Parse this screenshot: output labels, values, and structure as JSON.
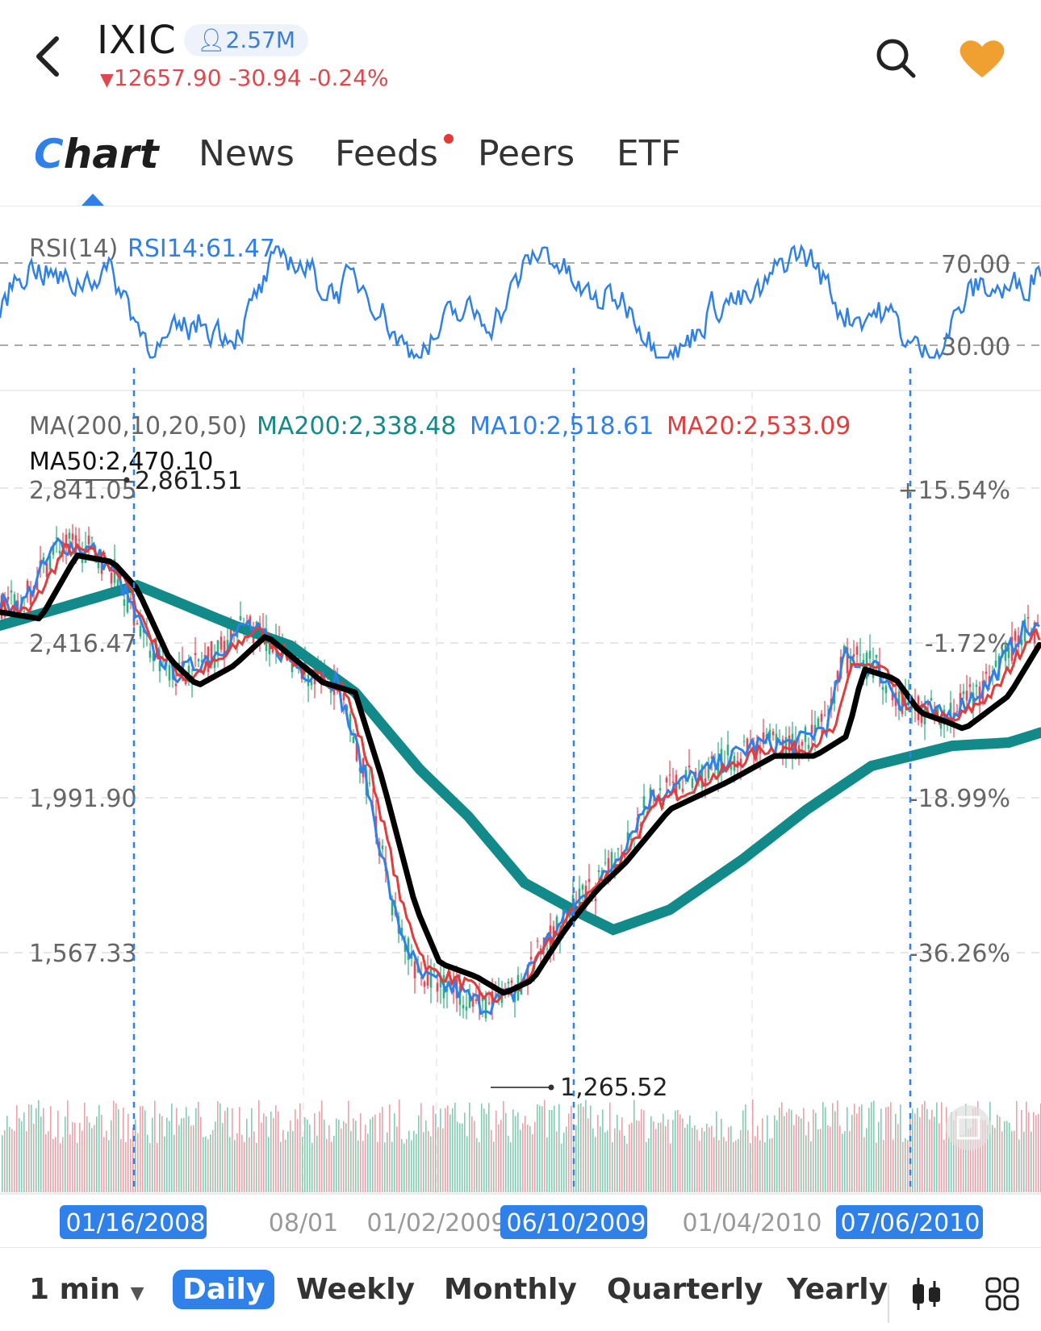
{
  "header": {
    "ticker": "IXIC",
    "followers": "2.57M",
    "price_line": "12657.90 -30.94 -0.24%",
    "down_color": "#e0474c"
  },
  "tabs": [
    {
      "label": "Chart",
      "active": true
    },
    {
      "label": "News"
    },
    {
      "label": "Feeds",
      "has_dot": true
    },
    {
      "label": "Peers"
    },
    {
      "label": "ETF"
    }
  ],
  "rsi": {
    "title": "RSI(14)",
    "value_label": "RSI14:61.47",
    "level_high": "70.00",
    "level_low": "30.00"
  },
  "ma": {
    "title": "MA(200,10,20,50)",
    "ma200": "MA200:2,338.48",
    "ma10": "MA10:2,518.61",
    "ma20": "MA20:2,533.09",
    "ma50": "MA50:2,470.10",
    "colors": {
      "ma200": "#138a8a",
      "ma10": "#2f80e8",
      "ma20": "#e53b3b",
      "ma50": "#000000"
    }
  },
  "price_axis": [
    "2,841.05",
    "2,416.47",
    "1,991.90",
    "1,567.33"
  ],
  "percent_axis": [
    "+15.54%",
    "-1.72%",
    "-18.99%",
    "-36.26%"
  ],
  "annotations": {
    "high": "2,861.51",
    "low": "1,265.52"
  },
  "date_axis": {
    "plain": [
      "08/01",
      "01/02/2009",
      "01/04/2010"
    ],
    "highlighted": [
      "01/16/2008",
      "06/10/2009",
      "07/06/2010"
    ]
  },
  "chart_data": {
    "type": "line",
    "title": "IXIC Daily",
    "x": [
      "01/16/2008",
      "08/01/2008",
      "01/02/2009",
      "06/10/2009",
      "01/04/2010",
      "07/06/2010"
    ],
    "ylim": [
      1265.52,
      2861.51
    ],
    "series": [
      {
        "name": "MA200",
        "values": [
          2500,
          2420,
          1990,
          1520,
          1900,
          2340
        ]
      },
      {
        "name": "MA50",
        "values": [
          2560,
          2260,
          1480,
          1350,
          2050,
          2470
        ]
      },
      {
        "name": "MA20",
        "values": [
          2620,
          2280,
          1500,
          1330,
          2100,
          2533
        ]
      },
      {
        "name": "MA10",
        "values": [
          2640,
          2300,
          1520,
          1310,
          2120,
          2519
        ]
      }
    ],
    "rsi_last": 61.47
  },
  "bottom_bar": {
    "interval": "1 min",
    "periods": [
      "Daily",
      "Weekly",
      "Monthly",
      "Quarterly",
      "Yearly"
    ],
    "active": "Daily"
  }
}
